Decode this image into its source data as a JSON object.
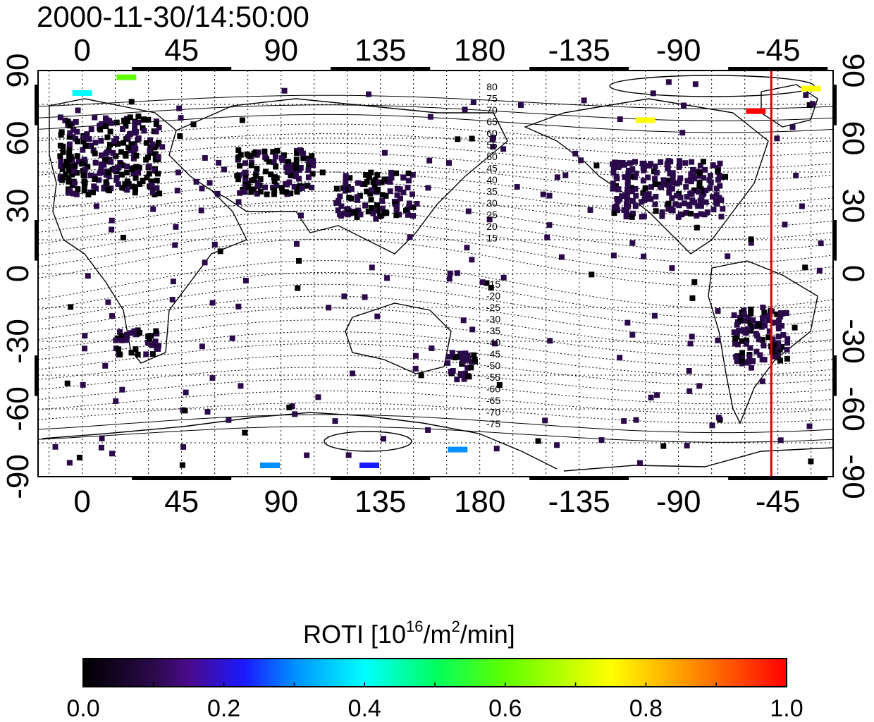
{
  "title": "2000-11-30/14:50:00",
  "map": {
    "x_tick_labels": [
      "0",
      "45",
      "90",
      "135",
      "180",
      "-135",
      "-90",
      "-45"
    ],
    "x_tick_lon": [
      0,
      45,
      90,
      135,
      180,
      225,
      270,
      315
    ],
    "y_tick_labels": [
      "90",
      "60",
      "30",
      "0",
      "-30",
      "-60",
      "-90"
    ],
    "y_tick_lat": [
      90,
      60,
      30,
      0,
      -30,
      -60,
      -90
    ],
    "lon_range": [
      -20,
      340
    ],
    "lat_range": [
      -90,
      90
    ],
    "grid": "dotted 15deg",
    "terminator_lon": 312,
    "terminator_color": "#e00000",
    "north_contour_labels": [
      "80",
      "75",
      "70",
      "65",
      "60",
      "55",
      "50",
      "45",
      "40",
      "35",
      "30",
      "25",
      "20",
      "15"
    ],
    "south_contour_labels": [
      "-15",
      "-20",
      "-25",
      "-30",
      "-35",
      "-40",
      "-45",
      "-50",
      "-55",
      "-60",
      "-65",
      "-70",
      "-75"
    ]
  },
  "colorbar": {
    "title": "ROTI  [10",
    "title_sup": "16",
    "title_mid": "/m",
    "title_sup2": "2",
    "title_end": "/min]",
    "tick_labels": [
      "0.0",
      "0.2",
      "0.4",
      "0.6",
      "0.8",
      "1.0"
    ],
    "range": [
      0.0,
      1.0
    ],
    "colors": [
      "#000000",
      "#2a0a4a",
      "#4a0a8a",
      "#1a1aff",
      "#0090ff",
      "#00ffff",
      "#00ff60",
      "#60ff00",
      "#ffff00",
      "#ff8000",
      "#ff0000"
    ]
  },
  "chart_data": {
    "type": "heatmap",
    "title": "2000-11-30/14:50:00",
    "xlabel": "",
    "ylabel": "",
    "xlim": [
      -20,
      340
    ],
    "ylim": [
      -90,
      90
    ],
    "colorbar_label": "ROTI [10^16/m^2/min]",
    "clim": [
      0.0,
      1.0
    ],
    "regions": [
      {
        "lon": [
          -10,
          35
        ],
        "lat": [
          35,
          70
        ],
        "roti": 0.05
      },
      {
        "lon": [
          15,
          35
        ],
        "lat": [
          -36,
          -25
        ],
        "roti": 0.05
      },
      {
        "lon": [
          70,
          105
        ],
        "lat": [
          35,
          55
        ],
        "roti": 0.05
      },
      {
        "lon": [
          115,
          150
        ],
        "lat": [
          25,
          45
        ],
        "roti": 0.05
      },
      {
        "lon": [
          240,
          290
        ],
        "lat": [
          25,
          50
        ],
        "roti": 0.08
      },
      {
        "lon": [
          295,
          320
        ],
        "lat": [
          -40,
          -15
        ],
        "roti": 0.06
      },
      {
        "lon": [
          165,
          180
        ],
        "lat": [
          -48,
          -35
        ],
        "roti": 0.05
      }
    ],
    "hotspots": [
      {
        "lon": 305,
        "lat": 72,
        "roti": 0.95
      },
      {
        "lon": 330,
        "lat": 82,
        "roti": 0.75
      },
      {
        "lon": 20,
        "lat": 87,
        "roti": 0.65
      },
      {
        "lon": 0,
        "lat": 80,
        "roti": 0.45
      },
      {
        "lon": 85,
        "lat": -85,
        "roti": 0.38
      },
      {
        "lon": 130,
        "lat": -85,
        "roti": 0.28
      },
      {
        "lon": 170,
        "lat": -78,
        "roti": 0.35
      },
      {
        "lon": 255,
        "lat": 68,
        "roti": 0.75
      }
    ]
  }
}
